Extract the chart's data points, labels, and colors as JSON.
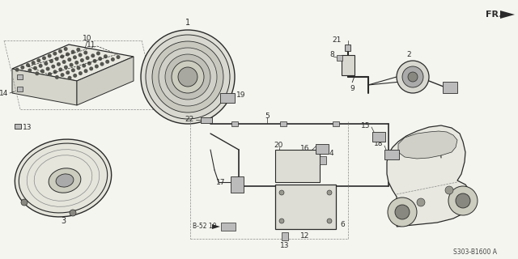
{
  "bg_color": "#f5f5f0",
  "diagram_code": "S303-B1600A",
  "line_color": "#2a2a2a",
  "gray": "#888888",
  "lgray": "#bbbbbb"
}
